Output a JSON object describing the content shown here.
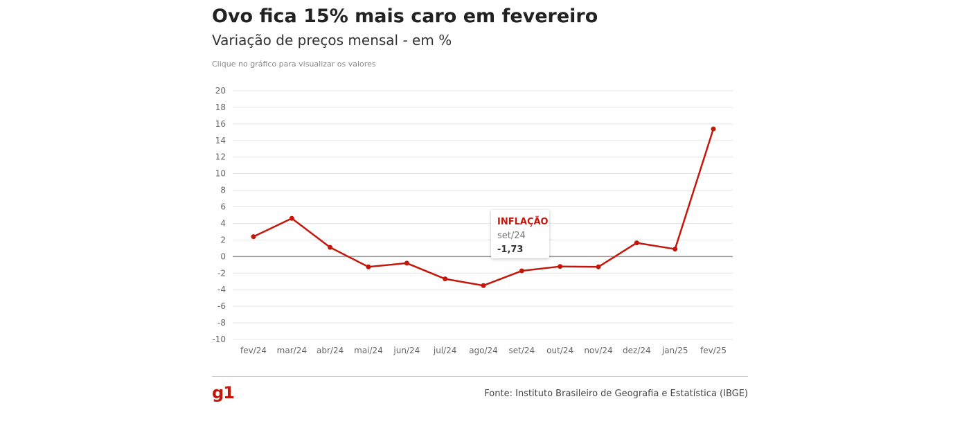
{
  "header": {
    "title": "Ovo fica 15% mais caro em fevereiro",
    "subtitle": "Variação de preços mensal - em %",
    "hint": "Clique no gráfico para visualizar os valores"
  },
  "chart_data": {
    "type": "line",
    "categories": [
      "fev/24",
      "mar/24",
      "abr/24",
      "mai/24",
      "jun/24",
      "jul/24",
      "ago/24",
      "set/24",
      "out/24",
      "nov/24",
      "dez/24",
      "jan/25",
      "fev/25"
    ],
    "series": [
      {
        "name": "INFLAÇÃO",
        "values": [
          2.4,
          4.6,
          1.1,
          -1.25,
          -0.8,
          -2.7,
          -3.5,
          -1.73,
          -1.2,
          -1.25,
          1.65,
          0.9,
          15.39
        ]
      }
    ],
    "ylim": [
      -10,
      20
    ],
    "yticks": [
      20,
      18,
      16,
      14,
      12,
      10,
      8,
      6,
      4,
      2,
      0,
      -2,
      -4,
      -6,
      -8,
      -10
    ],
    "grid": true,
    "line_color": "#c4170c"
  },
  "tooltip": {
    "series": "INFLAÇÃO",
    "category": "set/24",
    "value": "-1,73"
  },
  "footer": {
    "logo": "g1",
    "source": "Fonte: Instituto Brasileiro de Geografia e Estatística (IBGE)"
  }
}
